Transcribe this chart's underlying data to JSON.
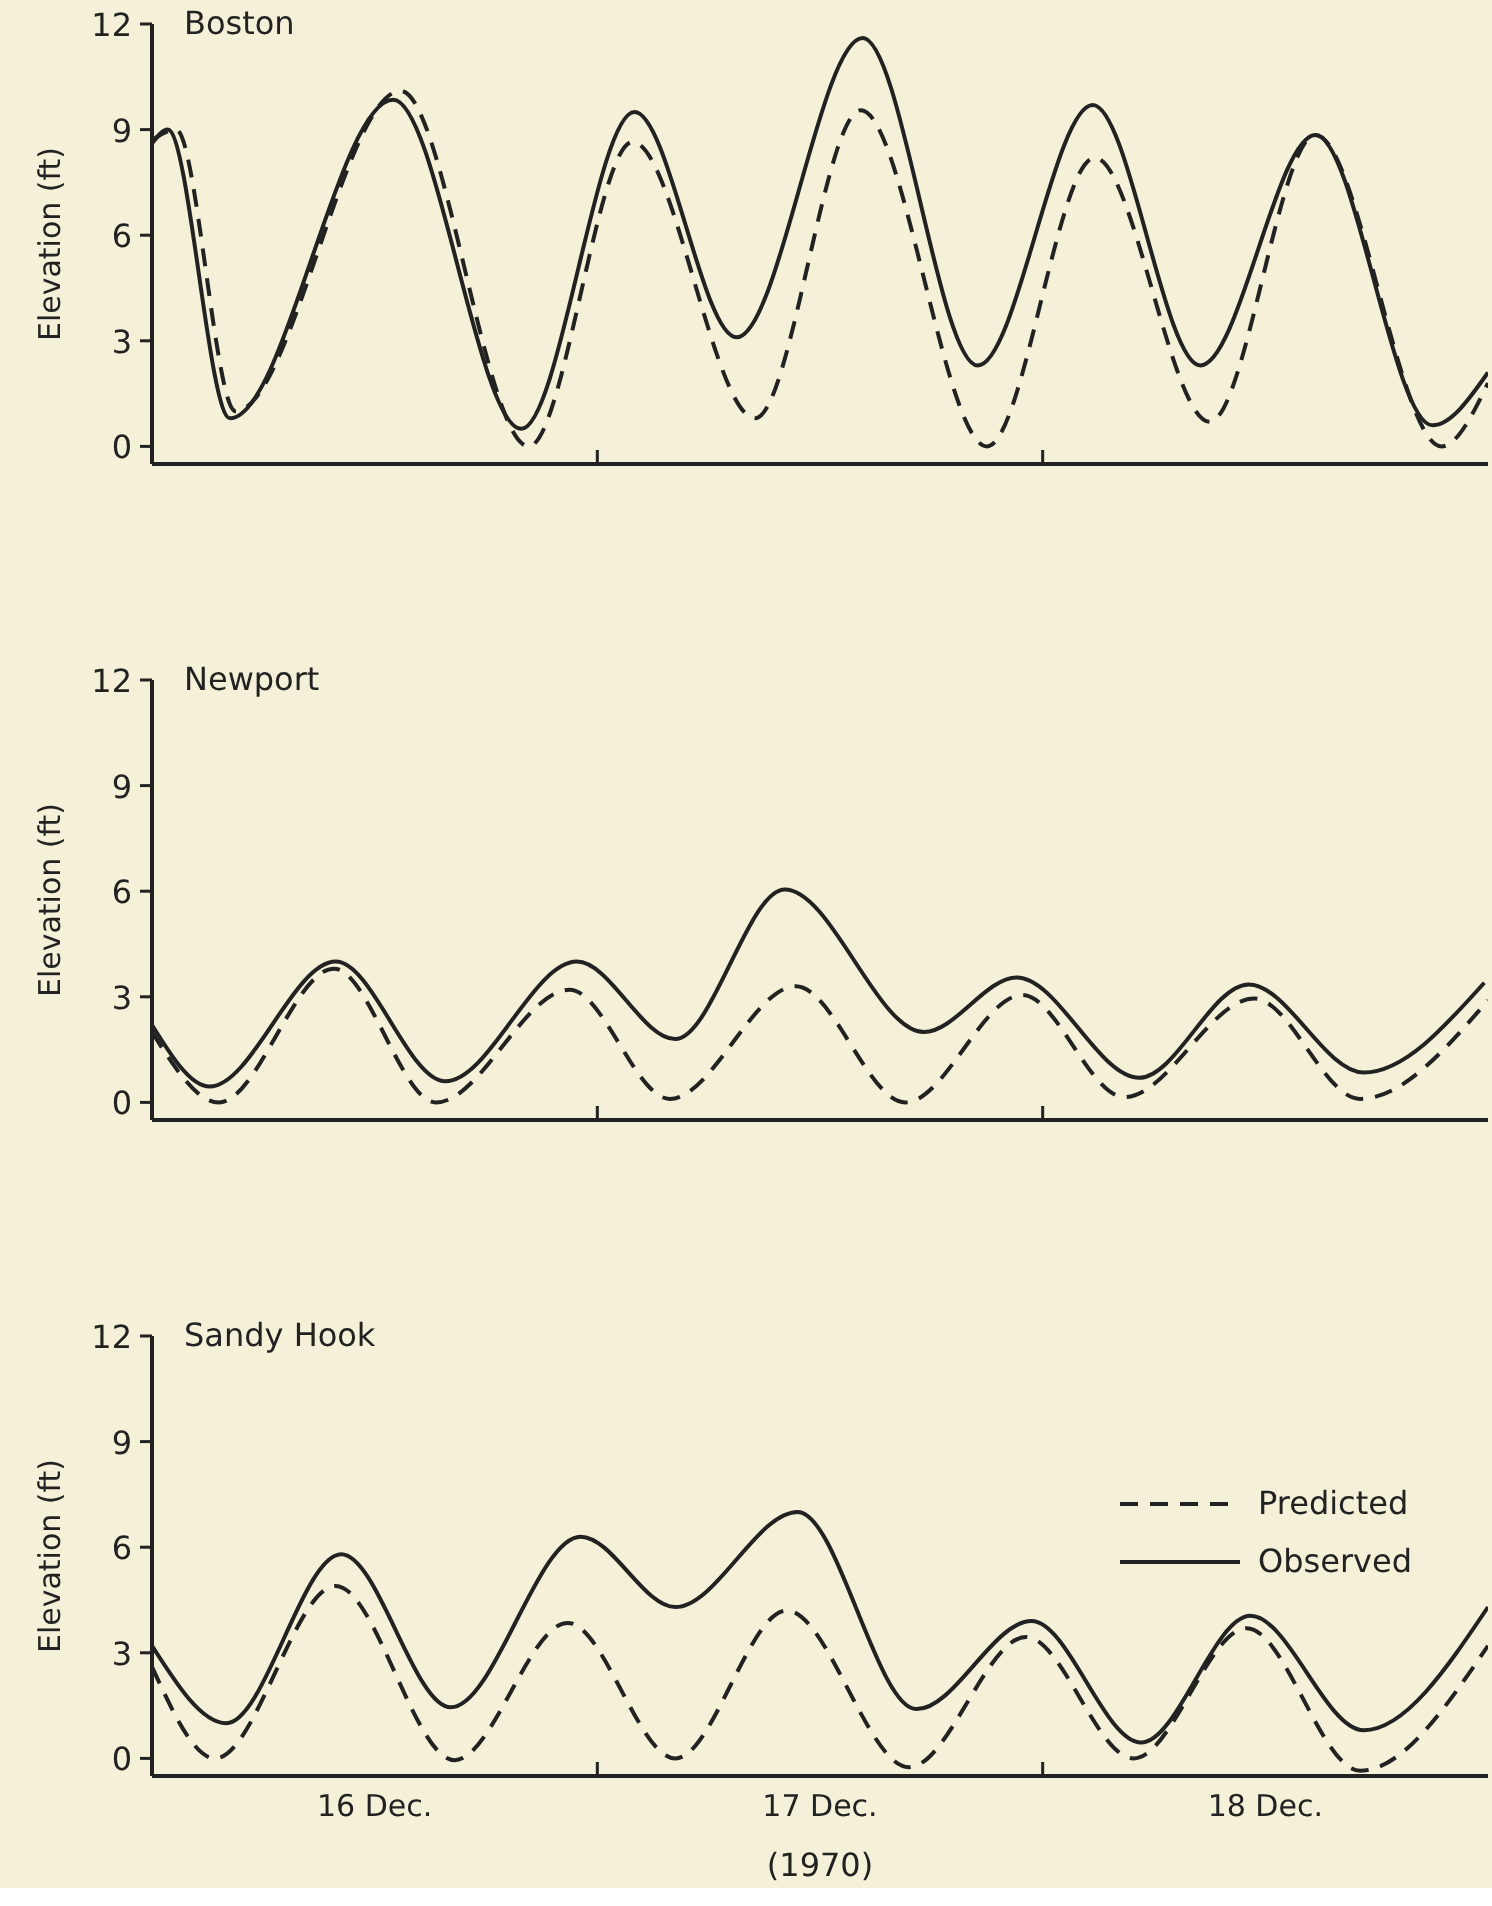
{
  "chart_data": [
    {
      "type": "line",
      "title": "Boston",
      "ylabel": "Elevation (ft)",
      "xlim": [
        "1970-12-16T00:00",
        "1970-12-19T00:00"
      ],
      "ylim": [
        -0.5,
        12
      ],
      "yticks": [
        0,
        3,
        6,
        9,
        12
      ],
      "xticks": [
        {
          "value": "1970-12-17T00:00",
          "label": null
        },
        {
          "value": "1970-12-18T00:00",
          "label": null
        }
      ],
      "tick_labels": "y",
      "legend": false,
      "series": [
        {
          "color": "#222222",
          "line_style": "dashed",
          "x": [
            "1970-12-16T00:00",
            "1970-12-16T01:18",
            "1970-12-16T04:30",
            "1970-12-16T13:24",
            "1970-12-16T20:18",
            "1970-12-17T01:54",
            "1970-12-17T08:30",
            "1970-12-17T14:12",
            "1970-12-17T21:00",
            "1970-12-18T02:48",
            "1970-12-18T09:00",
            "1970-12-18T14:42",
            "1970-12-18T21:30",
            "1970-12-19T00:00"
          ],
          "values": [
            8.7,
            9.0,
            1.0,
            10.1,
            0.0,
            8.65,
            0.8,
            9.55,
            0.0,
            8.2,
            0.7,
            8.85,
            0.0,
            1.8
          ]
        },
        {
          "color": "#222222",
          "line_style": "solid",
          "x": [
            "1970-12-16T00:00",
            "1970-12-16T00:51",
            "1970-12-16T04:12",
            "1970-12-16T13:00",
            "1970-12-16T19:54",
            "1970-12-17T02:00",
            "1970-12-17T07:30",
            "1970-12-17T14:18",
            "1970-12-17T20:30",
            "1970-12-18T02:42",
            "1970-12-18T08:30",
            "1970-12-18T14:42",
            "1970-12-18T21:00",
            "1970-12-19T00:00"
          ],
          "values": [
            8.6,
            9.0,
            0.8,
            9.85,
            0.5,
            9.5,
            3.1,
            11.6,
            2.3,
            9.7,
            2.3,
            8.85,
            0.6,
            2.1
          ]
        }
      ]
    },
    {
      "type": "line",
      "title": "Newport",
      "ylabel": "Elevation (ft)",
      "xlim": [
        "1970-12-16T00:00",
        "1970-12-19T00:00"
      ],
      "ylim": [
        -0.5,
        12
      ],
      "yticks": [
        0,
        3,
        6,
        9,
        12
      ],
      "xticks": [
        {
          "value": "1970-12-17T00:00",
          "label": null
        },
        {
          "value": "1970-12-18T00:00",
          "label": null
        }
      ],
      "tick_labels": "y",
      "legend": false,
      "series": [
        {
          "color": "#222222",
          "line_style": "dashed",
          "x": [
            "1970-12-16T00:00",
            "1970-12-16T03:36",
            "1970-12-16T09:48",
            "1970-12-16T15:18",
            "1970-12-16T22:30",
            "1970-12-17T03:54",
            "1970-12-17T10:42",
            "1970-12-17T16:36",
            "1970-12-17T22:54",
            "1970-12-18T04:24",
            "1970-12-18T11:24",
            "1970-12-18T17:06",
            "1970-12-19T00:00"
          ],
          "values": [
            2.0,
            0.0,
            3.8,
            0.0,
            3.2,
            0.1,
            3.3,
            0.0,
            3.05,
            0.15,
            2.95,
            0.1,
            2.9
          ]
        },
        {
          "color": "#222222",
          "line_style": "solid",
          "x": [
            "1970-12-16T00:00",
            "1970-12-16T03:06",
            "1970-12-16T09:54",
            "1970-12-16T15:48",
            "1970-12-16T22:54",
            "1970-12-17T04:12",
            "1970-12-17T10:06",
            "1970-12-17T17:36",
            "1970-12-17T22:36",
            "1970-12-18T05:12",
            "1970-12-18T11:06",
            "1970-12-18T17:18",
            "1970-12-18T23:48"
          ],
          "values": [
            2.2,
            0.45,
            4.0,
            0.6,
            4.0,
            1.8,
            6.05,
            2.0,
            3.55,
            0.7,
            3.35,
            0.85,
            3.4
          ]
        }
      ]
    },
    {
      "type": "line",
      "title": "Sandy Hook",
      "ylabel": "Elevation (ft)",
      "xlabel": "(1970)",
      "xlim": [
        "1970-12-16T00:00",
        "1970-12-19T00:00"
      ],
      "ylim": [
        -0.5,
        12
      ],
      "yticks": [
        0,
        3,
        6,
        9,
        12
      ],
      "xticks": [
        {
          "value": "1970-12-16T12:00",
          "label": "16 Dec."
        },
        {
          "value": "1970-12-17T00:00",
          "label": null
        },
        {
          "value": "1970-12-17T12:00",
          "label": "17 Dec."
        },
        {
          "value": "1970-12-18T00:00",
          "label": null
        },
        {
          "value": "1970-12-18T12:00",
          "label": "18 Dec."
        }
      ],
      "legend": "right",
      "series": [
        {
          "name": "Predicted",
          "color": "#222222",
          "line_style": "dashed",
          "x": [
            "1970-12-16T00:00",
            "1970-12-16T03:24",
            "1970-12-16T09:54",
            "1970-12-16T16:18",
            "1970-12-16T22:24",
            "1970-12-17T04:12",
            "1970-12-17T10:12",
            "1970-12-17T16:48",
            "1970-12-17T23:06",
            "1970-12-18T04:54",
            "1970-12-18T11:00",
            "1970-12-18T17:06",
            "1970-12-19T00:00"
          ],
          "values": [
            2.6,
            0.0,
            4.9,
            -0.05,
            3.85,
            0.0,
            4.2,
            -0.25,
            3.45,
            0.0,
            3.7,
            -0.35,
            3.2
          ]
        },
        {
          "name": "Observed",
          "color": "#222222",
          "line_style": "solid",
          "x": [
            "1970-12-16T00:00",
            "1970-12-16T04:00",
            "1970-12-16T10:12",
            "1970-12-16T16:06",
            "1970-12-16T23:06",
            "1970-12-17T04:12",
            "1970-12-17T10:48",
            "1970-12-17T17:12",
            "1970-12-17T23:24",
            "1970-12-18T05:18",
            "1970-12-18T11:12",
            "1970-12-18T17:18",
            "1970-12-19T00:00"
          ],
          "values": [
            3.2,
            1.0,
            5.8,
            1.45,
            6.3,
            4.3,
            7.0,
            1.4,
            3.9,
            0.45,
            4.05,
            0.8,
            4.3
          ]
        }
      ]
    }
  ]
}
